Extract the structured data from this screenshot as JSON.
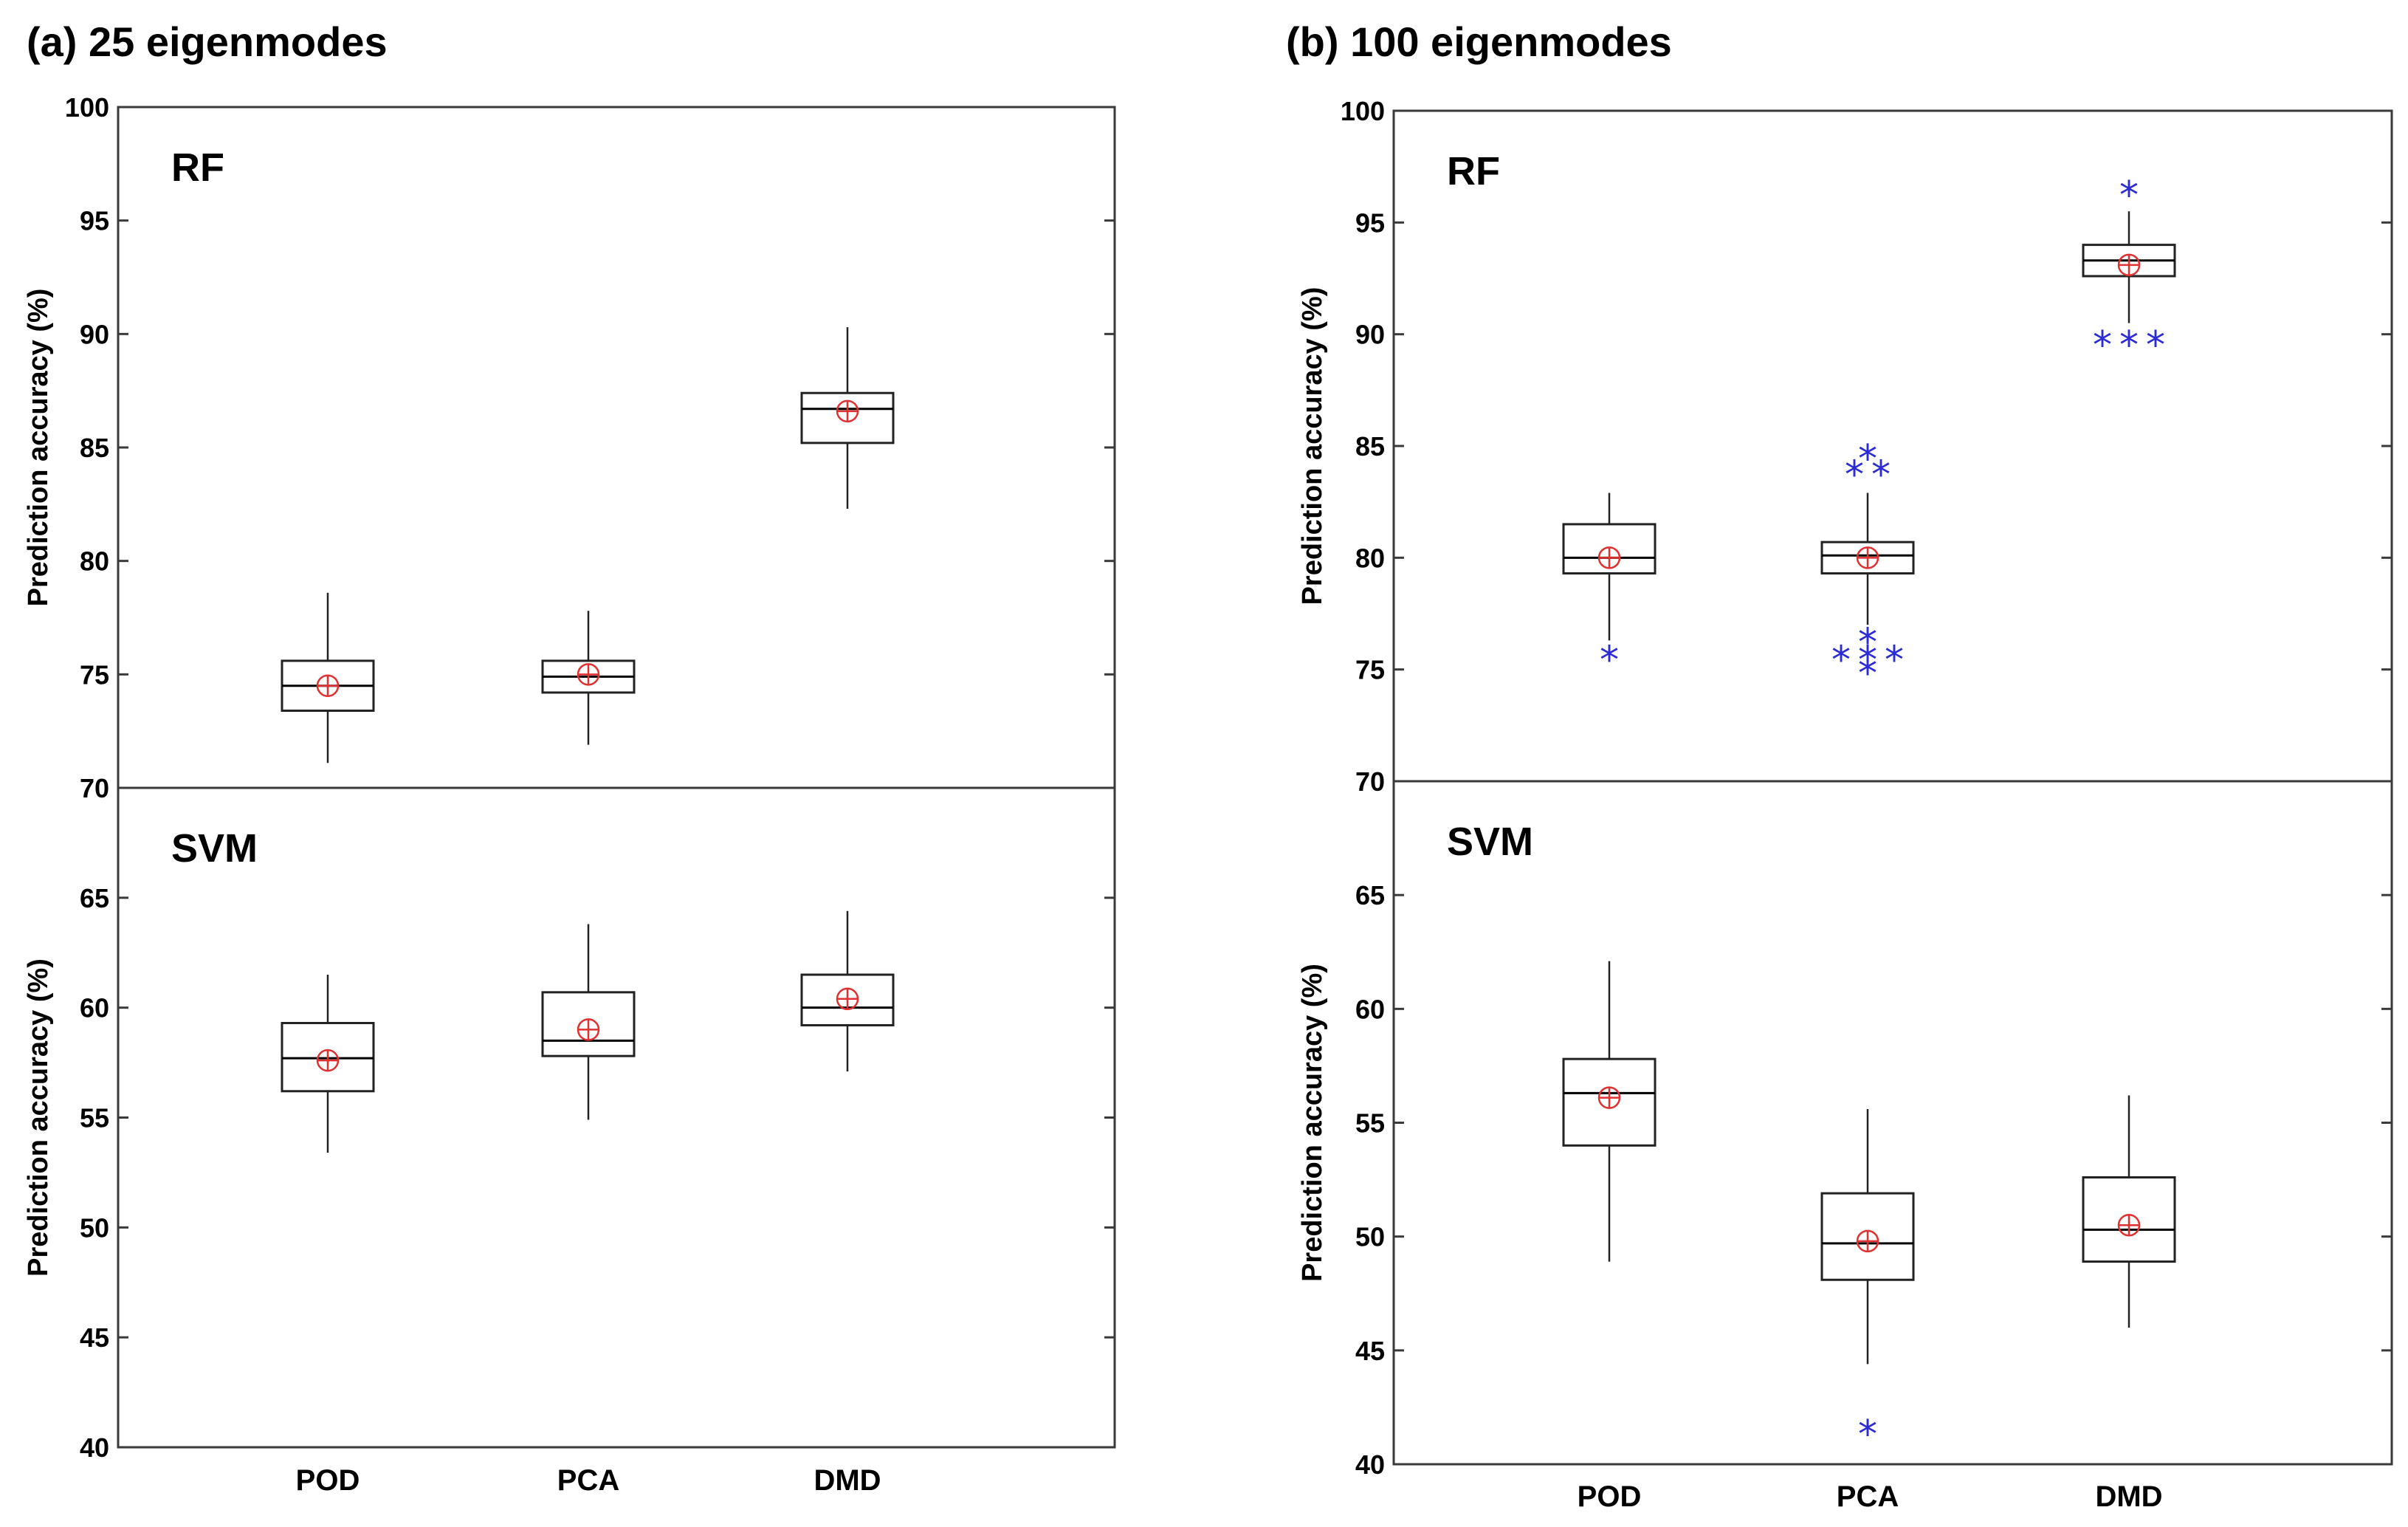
{
  "chart_data": [
    {
      "type": "box",
      "title": "(a) 25 eigenmodes",
      "categories": [
        "POD",
        "PCA",
        "DMD"
      ],
      "colors": {
        "median": "#000000",
        "mean_marker": "#e03030",
        "outlier": "#2b2bd6"
      },
      "subplots": [
        {
          "label": "RF",
          "ylabel": "Prediction accuracy (%)",
          "ylim": [
            70,
            100
          ],
          "yticks": [
            70,
            75,
            80,
            85,
            90,
            95,
            100
          ],
          "boxes": [
            {
              "category": "POD",
              "whisker_low": 71.1,
              "q1": 73.4,
              "median": 74.5,
              "q3": 75.6,
              "whisker_high": 78.6,
              "mean": 74.5,
              "outliers": []
            },
            {
              "category": "PCA",
              "whisker_low": 71.9,
              "q1": 74.2,
              "median": 74.9,
              "q3": 75.6,
              "whisker_high": 77.8,
              "mean": 75.0,
              "outliers": []
            },
            {
              "category": "DMD",
              "whisker_low": 82.3,
              "q1": 85.2,
              "median": 86.7,
              "q3": 87.4,
              "whisker_high": 90.3,
              "mean": 86.6,
              "outliers": []
            }
          ]
        },
        {
          "label": "SVM",
          "ylabel": "Prediction accuracy (%)",
          "ylim": [
            40,
            70
          ],
          "yticks": [
            40,
            45,
            50,
            55,
            60,
            65
          ],
          "boxes": [
            {
              "category": "POD",
              "whisker_low": 53.4,
              "q1": 56.2,
              "median": 57.7,
              "q3": 59.3,
              "whisker_high": 61.5,
              "mean": 57.6,
              "outliers": []
            },
            {
              "category": "PCA",
              "whisker_low": 54.9,
              "q1": 57.8,
              "median": 58.5,
              "q3": 60.7,
              "whisker_high": 63.8,
              "mean": 59.0,
              "outliers": []
            },
            {
              "category": "DMD",
              "whisker_low": 57.1,
              "q1": 59.2,
              "median": 60.0,
              "q3": 61.5,
              "whisker_high": 64.4,
              "mean": 60.4,
              "outliers": []
            }
          ]
        }
      ]
    },
    {
      "type": "box",
      "title": "(b) 100 eigenmodes",
      "categories": [
        "POD",
        "PCA",
        "DMD"
      ],
      "colors": {
        "median": "#000000",
        "mean_marker": "#e03030",
        "outlier": "#2b2bd6"
      },
      "subplots": [
        {
          "label": "RF",
          "ylabel": "Prediction accuracy (%)",
          "ylim": [
            70,
            100
          ],
          "yticks": [
            70,
            75,
            80,
            85,
            90,
            95,
            100
          ],
          "boxes": [
            {
              "category": "POD",
              "whisker_low": 76.3,
              "q1": 79.3,
              "median": 80.0,
              "q3": 81.5,
              "whisker_high": 82.9,
              "mean": 80.0,
              "outliers": [
                75.5
              ]
            },
            {
              "category": "PCA",
              "whisker_low": 77.0,
              "q1": 79.3,
              "median": 80.1,
              "q3": 80.7,
              "whisker_high": 82.9,
              "mean": 80.0,
              "outliers": [
                84.5,
                83.8,
                83.8,
                76.3,
                75.5,
                75.5,
                75.5,
                74.9
              ]
            },
            {
              "category": "DMD",
              "whisker_low": 90.5,
              "q1": 92.6,
              "median": 93.3,
              "q3": 94.0,
              "whisker_high": 95.5,
              "mean": 93.1,
              "outliers": [
                96.3,
                89.6,
                89.6,
                89.6
              ]
            }
          ]
        },
        {
          "label": "SVM",
          "ylabel": "Prediction accuracy (%)",
          "ylim": [
            40,
            70
          ],
          "yticks": [
            40,
            45,
            50,
            55,
            60,
            65
          ],
          "boxes": [
            {
              "category": "POD",
              "whisker_low": 48.9,
              "q1": 54.0,
              "median": 56.3,
              "q3": 57.8,
              "whisker_high": 62.1,
              "mean": 56.1,
              "outliers": []
            },
            {
              "category": "PCA",
              "whisker_low": 44.4,
              "q1": 48.1,
              "median": 49.7,
              "q3": 51.9,
              "whisker_high": 55.6,
              "mean": 49.8,
              "outliers": [
                41.4
              ]
            },
            {
              "category": "DMD",
              "whisker_low": 46.0,
              "q1": 48.9,
              "median": 50.3,
              "q3": 52.6,
              "whisker_high": 56.2,
              "mean": 50.5,
              "outliers": []
            }
          ]
        }
      ]
    }
  ]
}
